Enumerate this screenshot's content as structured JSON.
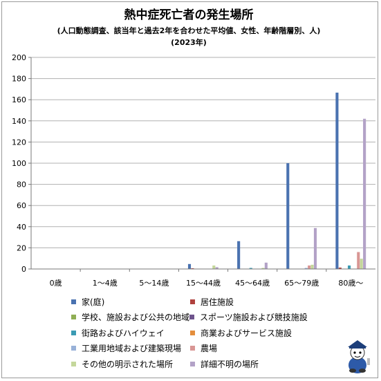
{
  "chart_data": {
    "type": "bar",
    "title": "熱中症死亡者の発生場所",
    "subtitle": "(人口動態調査、該当年と過去2年を合わせた平均値、女性、年齢階層別、人)",
    "subtitle2": "(2023年)",
    "ylim": [
      0,
      200
    ],
    "yticks": [
      0,
      20,
      40,
      60,
      80,
      100,
      120,
      140,
      160,
      180,
      200
    ],
    "categories": [
      "0歳",
      "1〜4歳",
      "5〜14歳",
      "15〜44歳",
      "45〜64歳",
      "65〜79歳",
      "80歳〜"
    ],
    "series": [
      {
        "name": "家(庭)",
        "color": "#4a72b0",
        "values": [
          0.3,
          0.3,
          0,
          4.7,
          26.3,
          100,
          166.7
        ]
      },
      {
        "name": "居住施設",
        "color": "#b0413e",
        "values": [
          0,
          0,
          0,
          0.7,
          0,
          0,
          1.3
        ]
      },
      {
        "name": "学校、施設および公共の地域",
        "color": "#8fae54",
        "values": [
          0,
          0,
          0,
          0,
          0,
          0,
          0
        ]
      },
      {
        "name": "スポーツ施設および競技施設",
        "color": "#6e548d",
        "values": [
          0,
          0,
          0,
          0,
          0,
          0,
          0
        ]
      },
      {
        "name": "街路およびハイウェイ",
        "color": "#3b9bb3",
        "values": [
          0,
          0,
          0.3,
          0,
          1.0,
          0.3,
          3.3
        ]
      },
      {
        "name": "商業およびサービス施設",
        "color": "#e48e3c",
        "values": [
          0,
          0,
          0,
          0,
          0,
          0,
          0
        ]
      },
      {
        "name": "工業用地域および建築現場",
        "color": "#98b1d8",
        "values": [
          0,
          0,
          0,
          0,
          0,
          1.0,
          0
        ]
      },
      {
        "name": "農場",
        "color": "#d99694",
        "values": [
          0,
          0,
          0,
          0,
          0.3,
          3.3,
          16
        ]
      },
      {
        "name": "その他の明示された場所",
        "color": "#c4d79b",
        "values": [
          0,
          0.3,
          0,
          3.3,
          1.0,
          4.0,
          9.7
        ]
      },
      {
        "name": "詳細不明の場所",
        "color": "#b3a2c7",
        "values": [
          0,
          0.3,
          0,
          1.7,
          6.0,
          38.7,
          142
        ]
      }
    ]
  }
}
